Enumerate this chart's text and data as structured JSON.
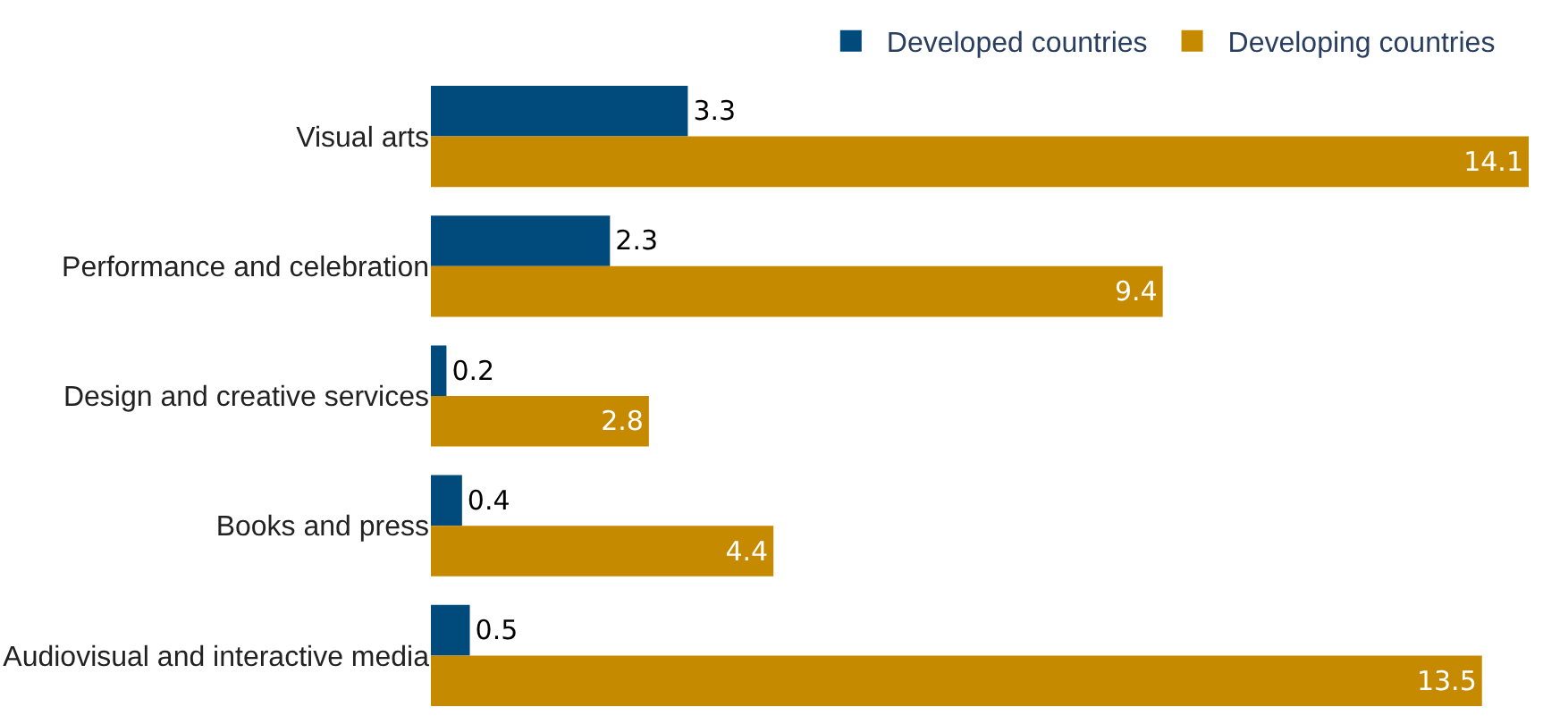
{
  "chart_data": {
    "type": "bar",
    "orientation": "horizontal",
    "categories": [
      "Visual arts",
      "Performance and celebration",
      "Design and creative services",
      "Books and press",
      "Audiovisual and interactive media"
    ],
    "series": [
      {
        "name": "Developed countries",
        "color": "#004a7c",
        "values": [
          3.3,
          2.3,
          0.2,
          0.4,
          0.5
        ]
      },
      {
        "name": "Developing countries",
        "color": "#c68a00",
        "values": [
          14.1,
          9.4,
          2.8,
          4.4,
          13.5
        ]
      }
    ],
    "data_labels": true,
    "legend": "top"
  }
}
